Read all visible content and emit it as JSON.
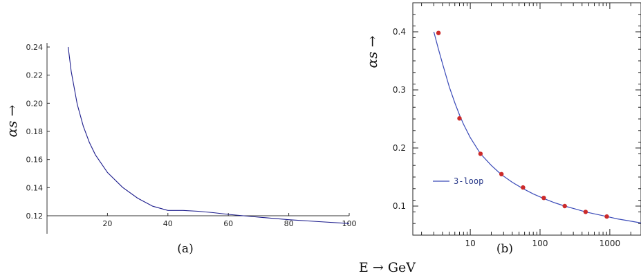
{
  "common_xlabel": "E → GeV",
  "chart_data": [
    {
      "id": "a",
      "type": "line",
      "caption": "(a)",
      "ylabel": "αs →",
      "xlabel": "",
      "xlim": [
        0,
        100
      ],
      "ylim": [
        0.12,
        0.24
      ],
      "xticks": [
        20,
        40,
        60,
        80,
        100
      ],
      "yticks": [
        0.12,
        0.14,
        0.16,
        0.18,
        0.2,
        0.22,
        0.24
      ],
      "ytick_labels": [
        "0.12",
        "0.14",
        "0.16",
        "0.18",
        "0.20",
        "0.22",
        "0.24"
      ],
      "series": [
        {
          "color": "#1c1c8c",
          "x": [
            7,
            8,
            10,
            12,
            14,
            16,
            20,
            25,
            30,
            35,
            40,
            45,
            50,
            55,
            60,
            70,
            80,
            90,
            100
          ],
          "y": [
            0.24,
            0.2226,
            0.1993,
            0.1838,
            0.1722,
            0.1634,
            0.1508,
            0.1402,
            0.1325,
            0.1268,
            0.1238,
            0.1238,
            0.1232,
            0.1222,
            0.121,
            0.119,
            0.1172,
            0.1158,
            0.1145
          ]
        }
      ],
      "grid": false
    },
    {
      "id": "b",
      "type": "line",
      "caption": "(b)",
      "ylabel": "αs →",
      "xlabel": "",
      "xscale": "log",
      "xlim": [
        1.5,
        2800
      ],
      "ylim": [
        0.05,
        0.45
      ],
      "xticks": [
        10,
        100,
        1000
      ],
      "xtick_labels": [
        "10",
        "100",
        "1000"
      ],
      "yticks": [
        0.1,
        0.2,
        0.3,
        0.4
      ],
      "ytick_labels": [
        "0.1",
        "0.2",
        "0.3",
        "0.4"
      ],
      "series": [
        {
          "name": "3-loop",
          "color": "#3a4ab8",
          "x": [
            3.0,
            3.5,
            4,
            5,
            6,
            7,
            8,
            10,
            14,
            20,
            28,
            40,
            57,
            80,
            113,
            160,
            226,
            320,
            450,
            640,
            905,
            1280,
            1800,
            2800
          ],
          "y": [
            0.4,
            0.37,
            0.345,
            0.305,
            0.278,
            0.257,
            0.241,
            0.218,
            0.19,
            0.17,
            0.154,
            0.141,
            0.13,
            0.121,
            0.113,
            0.106,
            0.1,
            0.095,
            0.09,
            0.086,
            0.082,
            0.078,
            0.075,
            0.071
          ]
        },
        {
          "type": "scatter",
          "color": "#cc2a2a",
          "x": [
            3.5,
            7,
            14,
            28,
            57,
            113,
            226,
            450,
            905
          ],
          "y": [
            0.398,
            0.251,
            0.19,
            0.155,
            0.132,
            0.114,
            0.1,
            0.09,
            0.082
          ]
        }
      ],
      "legend": {
        "placement": "bottom-left",
        "entries": [
          "3-loop"
        ]
      },
      "grid": false
    }
  ]
}
